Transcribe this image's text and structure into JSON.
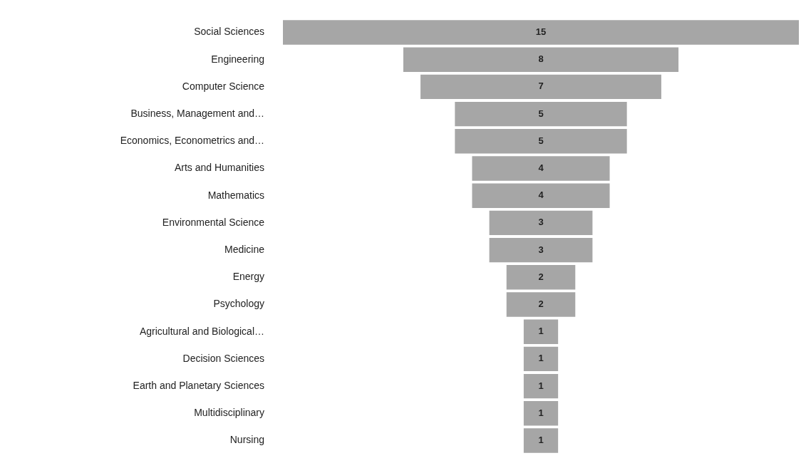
{
  "chart_data": {
    "type": "other",
    "categories": [
      "Social Sciences",
      "Engineering",
      "Computer Science",
      "Business, Management and…",
      "Economics, Econometrics and…",
      "Arts and Humanities",
      "Mathematics",
      "Environmental Science",
      "Medicine",
      "Energy",
      "Psychology",
      "Agricultural and Biological…",
      "Decision Sciences",
      "Earth and Planetary Sciences",
      "Multidisciplinary",
      "Nursing"
    ],
    "values": [
      15,
      8,
      7,
      5,
      5,
      4,
      4,
      3,
      3,
      2,
      2,
      1,
      1,
      1,
      1,
      1
    ],
    "color": "#a6a6a6",
    "data_labels": true
  }
}
